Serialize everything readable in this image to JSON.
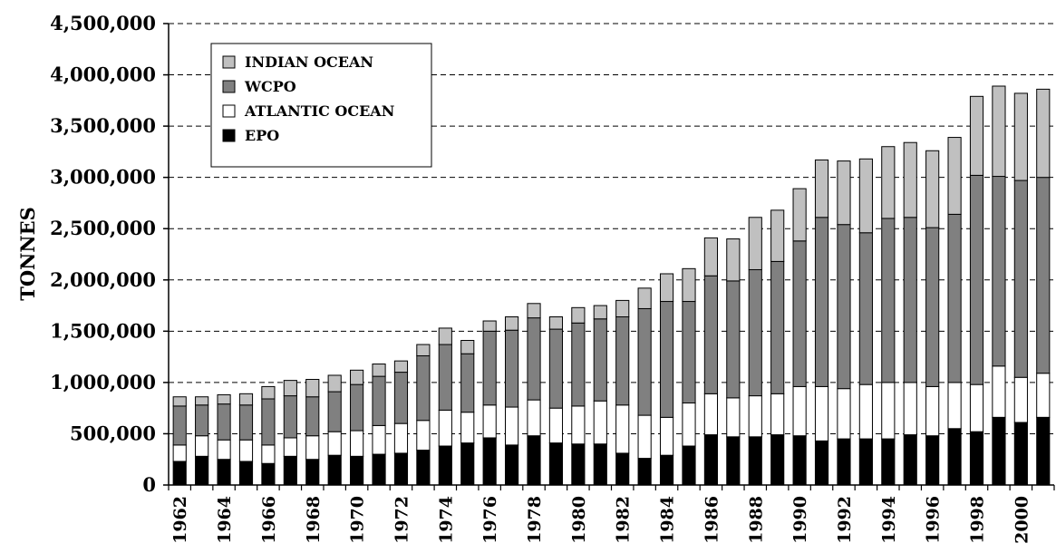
{
  "chart_data": {
    "type": "bar",
    "stacked": true,
    "ylabel": "TONNES",
    "ylim": [
      0,
      4500000
    ],
    "ytick_step": 500000,
    "ytick_labels": [
      "0",
      "500,000",
      "1,000,000",
      "1,500,000",
      "2,000,000",
      "2,500,000",
      "3,000,000",
      "3,500,000",
      "4,000,000",
      "4,500,000"
    ],
    "grid": "horizontal-dashed",
    "legend_position": "top-left",
    "x": [
      1962,
      1963,
      1964,
      1965,
      1966,
      1967,
      1968,
      1969,
      1970,
      1971,
      1972,
      1973,
      1974,
      1975,
      1976,
      1977,
      1978,
      1979,
      1980,
      1981,
      1982,
      1983,
      1984,
      1985,
      1986,
      1987,
      1988,
      1989,
      1990,
      1991,
      1992,
      1993,
      1994,
      1995,
      1996,
      1997,
      1998,
      1999,
      2000,
      2001
    ],
    "xtick_labels": [
      "1962",
      "1964",
      "1966",
      "1968",
      "1970",
      "1972",
      "1974",
      "1976",
      "1978",
      "1980",
      "1982",
      "1984",
      "1986",
      "1988",
      "1990",
      "1992",
      "1994",
      "1996",
      "1998",
      "2000"
    ],
    "series": [
      {
        "name": "EPO",
        "color": "#000000",
        "values": [
          230000,
          280000,
          250000,
          230000,
          210000,
          280000,
          250000,
          290000,
          280000,
          300000,
          310000,
          340000,
          380000,
          410000,
          460000,
          390000,
          480000,
          410000,
          400000,
          400000,
          310000,
          260000,
          290000,
          380000,
          490000,
          470000,
          470000,
          490000,
          480000,
          430000,
          450000,
          450000,
          450000,
          490000,
          480000,
          550000,
          520000,
          660000,
          610000,
          660000
        ]
      },
      {
        "name": "ATLANTIC OCEAN",
        "color": "#ffffff",
        "values": [
          160000,
          200000,
          190000,
          210000,
          180000,
          180000,
          230000,
          230000,
          250000,
          280000,
          290000,
          290000,
          350000,
          300000,
          320000,
          370000,
          350000,
          340000,
          370000,
          420000,
          470000,
          420000,
          370000,
          420000,
          400000,
          380000,
          400000,
          400000,
          480000,
          530000,
          490000,
          530000,
          550000,
          510000,
          480000,
          450000,
          460000,
          500000,
          440000,
          430000
        ]
      },
      {
        "name": "WCPO",
        "color": "#808080",
        "values": [
          380000,
          300000,
          350000,
          340000,
          450000,
          410000,
          380000,
          390000,
          450000,
          480000,
          500000,
          630000,
          640000,
          570000,
          720000,
          750000,
          800000,
          770000,
          810000,
          800000,
          860000,
          1040000,
          1130000,
          990000,
          1150000,
          1140000,
          1230000,
          1290000,
          1420000,
          1650000,
          1600000,
          1480000,
          1600000,
          1610000,
          1550000,
          1640000,
          2040000,
          1850000,
          1920000,
          1910000
        ]
      },
      {
        "name": "INDIAN OCEAN",
        "color": "#c0c0c0",
        "values": [
          90000,
          80000,
          90000,
          110000,
          120000,
          150000,
          170000,
          160000,
          140000,
          120000,
          110000,
          110000,
          160000,
          130000,
          100000,
          130000,
          140000,
          120000,
          150000,
          130000,
          160000,
          200000,
          270000,
          320000,
          370000,
          410000,
          510000,
          500000,
          510000,
          560000,
          620000,
          720000,
          700000,
          730000,
          750000,
          750000,
          770000,
          880000,
          850000,
          860000
        ]
      }
    ],
    "legend_order": [
      "INDIAN OCEAN",
      "WCPO",
      "ATLANTIC OCEAN",
      "EPO"
    ]
  }
}
